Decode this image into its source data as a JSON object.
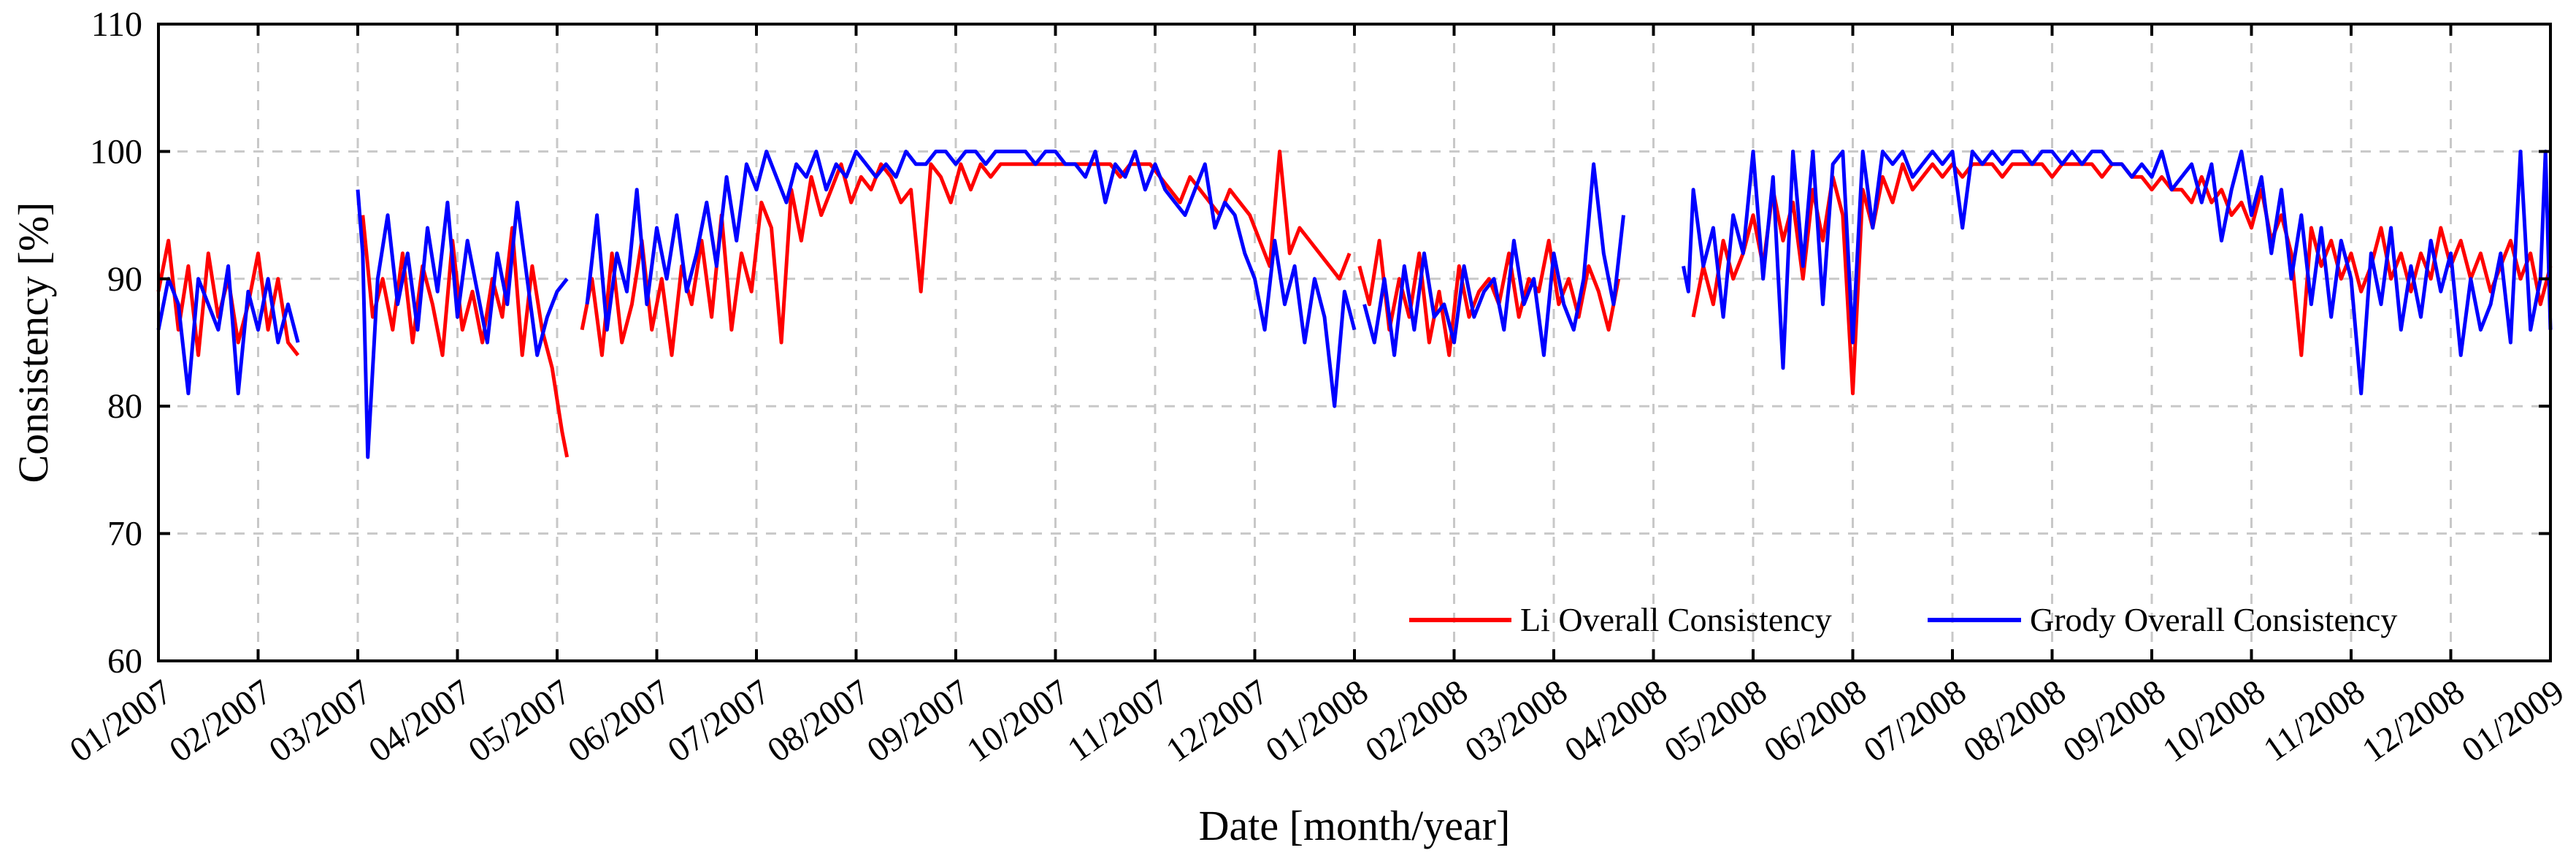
{
  "chart_data": {
    "type": "line",
    "title": "",
    "xlabel": "Date [month/year]",
    "ylabel": "Consistency [%]",
    "ylim": [
      60,
      110
    ],
    "yticks": [
      60,
      70,
      80,
      90,
      100,
      110
    ],
    "grid": true,
    "legend_position": "bottom-right",
    "x_tick_labels": [
      "01/2007",
      "02/2007",
      "03/2007",
      "04/2007",
      "05/2007",
      "06/2007",
      "07/2007",
      "08/2007",
      "09/2007",
      "10/2007",
      "11/2007",
      "12/2007",
      "01/2008",
      "02/2008",
      "03/2008",
      "04/2008",
      "05/2008",
      "06/2008",
      "07/2008",
      "08/2008",
      "09/2008",
      "10/2008",
      "11/2008",
      "12/2008",
      "01/2009"
    ],
    "x_unit": "months since 01/2007",
    "series": [
      {
        "name": "Li Overall Consistency",
        "color": "#ff0000",
        "segments": [
          {
            "x": [
              0,
              0.1,
              0.2,
              0.3,
              0.4,
              0.5,
              0.6,
              0.7,
              0.8,
              0.9,
              1.0,
              1.1,
              1.2,
              1.3,
              1.4
            ],
            "y": [
              89,
              93,
              86,
              91,
              84,
              92,
              87,
              90,
              85,
              88,
              92,
              86,
              90,
              85,
              84
            ]
          },
          {
            "x": [
              2.05,
              2.15,
              2.25,
              2.35,
              2.45,
              2.55,
              2.65,
              2.75,
              2.85,
              2.95,
              3.05,
              3.15,
              3.25,
              3.35,
              3.45,
              3.55,
              3.65,
              3.75,
              3.85,
              3.95,
              4.05,
              4.1
            ],
            "y": [
              95,
              87,
              90,
              86,
              92,
              85,
              91,
              88,
              84,
              93,
              86,
              89,
              85,
              90,
              87,
              94,
              84,
              91,
              86,
              83,
              78,
              76
            ]
          },
          {
            "x": [
              4.25,
              4.35,
              4.45,
              4.55,
              4.65,
              4.75,
              4.85,
              4.95,
              5.05,
              5.15,
              5.25,
              5.35,
              5.45,
              5.55,
              5.65,
              5.75,
              5.85,
              5.95,
              6.05,
              6.15,
              6.25,
              6.35,
              6.45,
              6.55,
              6.65,
              6.75,
              6.85,
              6.95,
              7.05,
              7.15,
              7.25,
              7.35,
              7.45,
              7.55,
              7.65,
              7.75,
              7.85,
              7.95,
              8.05,
              8.15,
              8.25,
              8.35,
              8.45,
              8.55,
              8.65,
              8.75,
              8.85,
              8.95,
              9.05,
              9.15,
              9.25,
              9.35,
              9.45,
              9.55,
              9.65,
              9.75,
              9.85,
              9.95,
              10.05,
              10.15,
              10.25,
              10.35,
              10.45,
              10.55,
              10.65,
              10.75,
              10.85,
              10.95,
              11.05,
              11.15,
              11.25,
              11.35,
              11.45,
              11.55,
              11.65,
              11.75,
              11.85,
              11.95
            ],
            "y": [
              86,
              90,
              84,
              92,
              85,
              88,
              93,
              86,
              90,
              84,
              91,
              88,
              93,
              87,
              95,
              86,
              92,
              89,
              96,
              94,
              85,
              97,
              93,
              98,
              95,
              97,
              99,
              96,
              98,
              97,
              99,
              98,
              96,
              97,
              89,
              99,
              98,
              96,
              99,
              97,
              99,
              98,
              99,
              99,
              99,
              99,
              99,
              99,
              99,
              99,
              99,
              99,
              99,
              99,
              98,
              99,
              99,
              99,
              98,
              97,
              96,
              98,
              97,
              96,
              95,
              97,
              96,
              95,
              93,
              91,
              100,
              92,
              94,
              93,
              92,
              91,
              90,
              92
            ]
          },
          {
            "x": [
              12.05,
              12.15,
              12.25,
              12.35,
              12.45,
              12.55,
              12.65,
              12.75,
              12.85,
              12.95,
              13.05,
              13.15,
              13.25,
              13.35,
              13.45,
              13.55,
              13.65,
              13.75,
              13.85,
              13.95,
              14.05,
              14.15,
              14.25,
              14.35,
              14.45,
              14.55,
              14.65
            ],
            "y": [
              91,
              88,
              93,
              86,
              90,
              87,
              92,
              85,
              89,
              84,
              91,
              87,
              89,
              90,
              88,
              92,
              87,
              90,
              89,
              93,
              88,
              90,
              87,
              91,
              89,
              86,
              90
            ]
          },
          {
            "x": [
              15.4,
              15.5,
              15.6,
              15.7,
              15.8,
              15.9,
              16.0,
              16.1,
              16.2,
              16.3,
              16.4,
              16.5,
              16.6,
              16.7,
              16.8,
              16.9,
              17.0,
              17.1,
              17.2,
              17.3,
              17.4,
              17.5,
              17.6,
              17.7,
              17.8,
              17.9,
              18.0,
              18.1,
              18.2,
              18.3,
              18.4,
              18.5,
              18.6,
              18.7,
              18.8,
              18.9,
              19.0,
              19.1,
              19.2,
              19.3,
              19.4,
              19.5,
              19.6,
              19.7,
              19.8,
              19.9,
              20.0,
              20.1,
              20.2,
              20.3,
              20.4,
              20.5,
              20.6,
              20.7,
              20.8,
              20.9,
              21.0,
              21.1,
              21.2,
              21.3,
              21.4,
              21.5,
              21.6,
              21.7,
              21.8,
              21.9,
              22.0,
              22.1,
              22.2,
              22.3,
              22.4,
              22.5,
              22.6,
              22.7,
              22.8,
              22.9,
              23.0,
              23.1,
              23.2,
              23.3,
              23.4,
              23.5,
              23.6,
              23.7,
              23.8,
              23.9,
              24.0
            ],
            "y": [
              87,
              91,
              88,
              93,
              90,
              92,
              95,
              91,
              97,
              93,
              96,
              90,
              97,
              93,
              98,
              95,
              81,
              97,
              94,
              98,
              96,
              99,
              97,
              98,
              99,
              98,
              99,
              98,
              99,
              99,
              99,
              98,
              99,
              99,
              99,
              99,
              98,
              99,
              99,
              99,
              99,
              98,
              99,
              99,
              98,
              98,
              97,
              98,
              97,
              97,
              96,
              98,
              96,
              97,
              95,
              96,
              94,
              97,
              93,
              95,
              92,
              84,
              94,
              91,
              93,
              90,
              92,
              89,
              91,
              94,
              90,
              92,
              89,
              92,
              90,
              94,
              91,
              93,
              90,
              92,
              89,
              91,
              93,
              90,
              92,
              88,
              91
            ]
          }
        ]
      },
      {
        "name": "Grody Overall Consistency",
        "color": "#0000ff",
        "segments": [
          {
            "x": [
              0,
              0.1,
              0.2,
              0.3,
              0.4,
              0.5,
              0.6,
              0.7,
              0.8,
              0.9,
              1.0,
              1.1,
              1.2,
              1.3,
              1.4
            ],
            "y": [
              86,
              90,
              88,
              81,
              90,
              88,
              86,
              91,
              81,
              89,
              86,
              90,
              85,
              88,
              85
            ]
          },
          {
            "x": [
              2.0,
              2.05,
              2.1,
              2.2,
              2.3,
              2.4,
              2.5,
              2.6,
              2.7,
              2.8,
              2.9,
              3.0,
              3.1,
              3.2,
              3.3,
              3.4,
              3.5,
              3.6,
              3.7,
              3.8,
              3.9,
              4.0,
              4.1
            ],
            "y": [
              97,
              92,
              76,
              90,
              95,
              88,
              92,
              86,
              94,
              89,
              96,
              87,
              93,
              89,
              85,
              92,
              88,
              96,
              90,
              84,
              87,
              89,
              90
            ]
          },
          {
            "x": [
              4.3,
              4.4,
              4.5,
              4.6,
              4.7,
              4.8,
              4.9,
              5.0,
              5.1,
              5.2,
              5.3,
              5.4,
              5.5,
              5.6,
              5.7,
              5.8,
              5.9,
              6.0,
              6.1,
              6.2,
              6.3,
              6.4,
              6.5,
              6.6,
              6.7,
              6.8,
              6.9,
              7.0,
              7.1,
              7.2,
              7.3,
              7.4,
              7.5,
              7.6,
              7.7,
              7.8,
              7.9,
              8.0,
              8.1,
              8.2,
              8.3,
              8.4,
              8.5,
              8.6,
              8.7,
              8.8,
              8.9,
              9.0,
              9.1,
              9.2,
              9.3,
              9.4,
              9.5,
              9.6,
              9.7,
              9.8,
              9.9,
              10.0,
              10.1,
              10.2,
              10.3,
              10.4,
              10.5,
              10.6,
              10.7,
              10.8,
              10.9,
              11.0,
              11.1,
              11.2,
              11.3,
              11.4,
              11.5,
              11.6,
              11.7,
              11.8,
              11.9,
              12.0
            ],
            "y": [
              88,
              95,
              86,
              92,
              89,
              97,
              88,
              94,
              90,
              95,
              89,
              92,
              96,
              91,
              98,
              93,
              99,
              97,
              100,
              98,
              96,
              99,
              98,
              100,
              97,
              99,
              98,
              100,
              99,
              98,
              99,
              98,
              100,
              99,
              99,
              100,
              100,
              99,
              100,
              100,
              99,
              100,
              100,
              100,
              100,
              99,
              100,
              100,
              99,
              99,
              98,
              100,
              96,
              99,
              98,
              100,
              97,
              99,
              97,
              96,
              95,
              97,
              99,
              94,
              96,
              95,
              92,
              90,
              86,
              93,
              88,
              91,
              85,
              90,
              87,
              80,
              89,
              86
            ]
          },
          {
            "x": [
              12.1,
              12.2,
              12.3,
              12.4,
              12.5,
              12.6,
              12.7,
              12.8,
              12.9,
              13.0,
              13.1,
              13.2,
              13.3,
              13.4,
              13.5,
              13.6,
              13.7,
              13.8,
              13.9,
              14.0,
              14.1,
              14.2,
              14.3,
              14.4,
              14.5,
              14.6,
              14.7
            ],
            "y": [
              88,
              85,
              90,
              84,
              91,
              86,
              92,
              87,
              88,
              85,
              91,
              87,
              89,
              90,
              86,
              93,
              88,
              90,
              84,
              92,
              88,
              86,
              90,
              99,
              92,
              88,
              95
            ]
          },
          {
            "x": [
              15.3,
              15.35,
              15.4,
              15.5,
              15.6,
              15.7,
              15.8,
              15.9,
              16.0,
              16.1,
              16.2,
              16.3,
              16.4,
              16.5,
              16.6,
              16.7,
              16.8,
              16.9,
              17.0,
              17.1,
              17.2,
              17.3,
              17.4,
              17.5,
              17.6,
              17.7,
              17.8,
              17.9,
              18.0,
              18.1,
              18.2,
              18.3,
              18.4,
              18.5,
              18.6,
              18.7,
              18.8,
              18.9,
              19.0,
              19.1,
              19.2,
              19.3,
              19.4,
              19.5,
              19.6,
              19.7,
              19.8,
              19.9,
              20.0,
              20.1,
              20.2,
              20.3,
              20.4,
              20.5,
              20.6,
              20.7,
              20.8,
              20.9,
              21.0,
              21.1,
              21.2,
              21.3,
              21.4,
              21.5,
              21.6,
              21.7,
              21.8,
              21.9,
              22.0,
              22.1,
              22.2,
              22.3,
              22.4,
              22.5,
              22.6,
              22.7,
              22.8,
              22.9,
              23.0,
              23.1,
              23.2,
              23.3,
              23.4,
              23.5,
              23.6,
              23.7,
              23.8,
              23.9,
              23.95,
              24.0
            ],
            "y": [
              91,
              89,
              97,
              91,
              94,
              87,
              95,
              92,
              100,
              90,
              98,
              83,
              100,
              91,
              100,
              88,
              99,
              100,
              85,
              100,
              94,
              100,
              99,
              100,
              98,
              99,
              100,
              99,
              100,
              94,
              100,
              99,
              100,
              99,
              100,
              100,
              99,
              100,
              100,
              99,
              100,
              99,
              100,
              100,
              99,
              99,
              98,
              99,
              98,
              100,
              97,
              98,
              99,
              96,
              99,
              93,
              97,
              100,
              95,
              98,
              92,
              97,
              90,
              95,
              88,
              94,
              87,
              93,
              90,
              81,
              92,
              88,
              94,
              86,
              91,
              87,
              93,
              89,
              92,
              84,
              90,
              86,
              88,
              92,
              85,
              100,
              86,
              90,
              100,
              86
            ]
          }
        ]
      }
    ]
  }
}
